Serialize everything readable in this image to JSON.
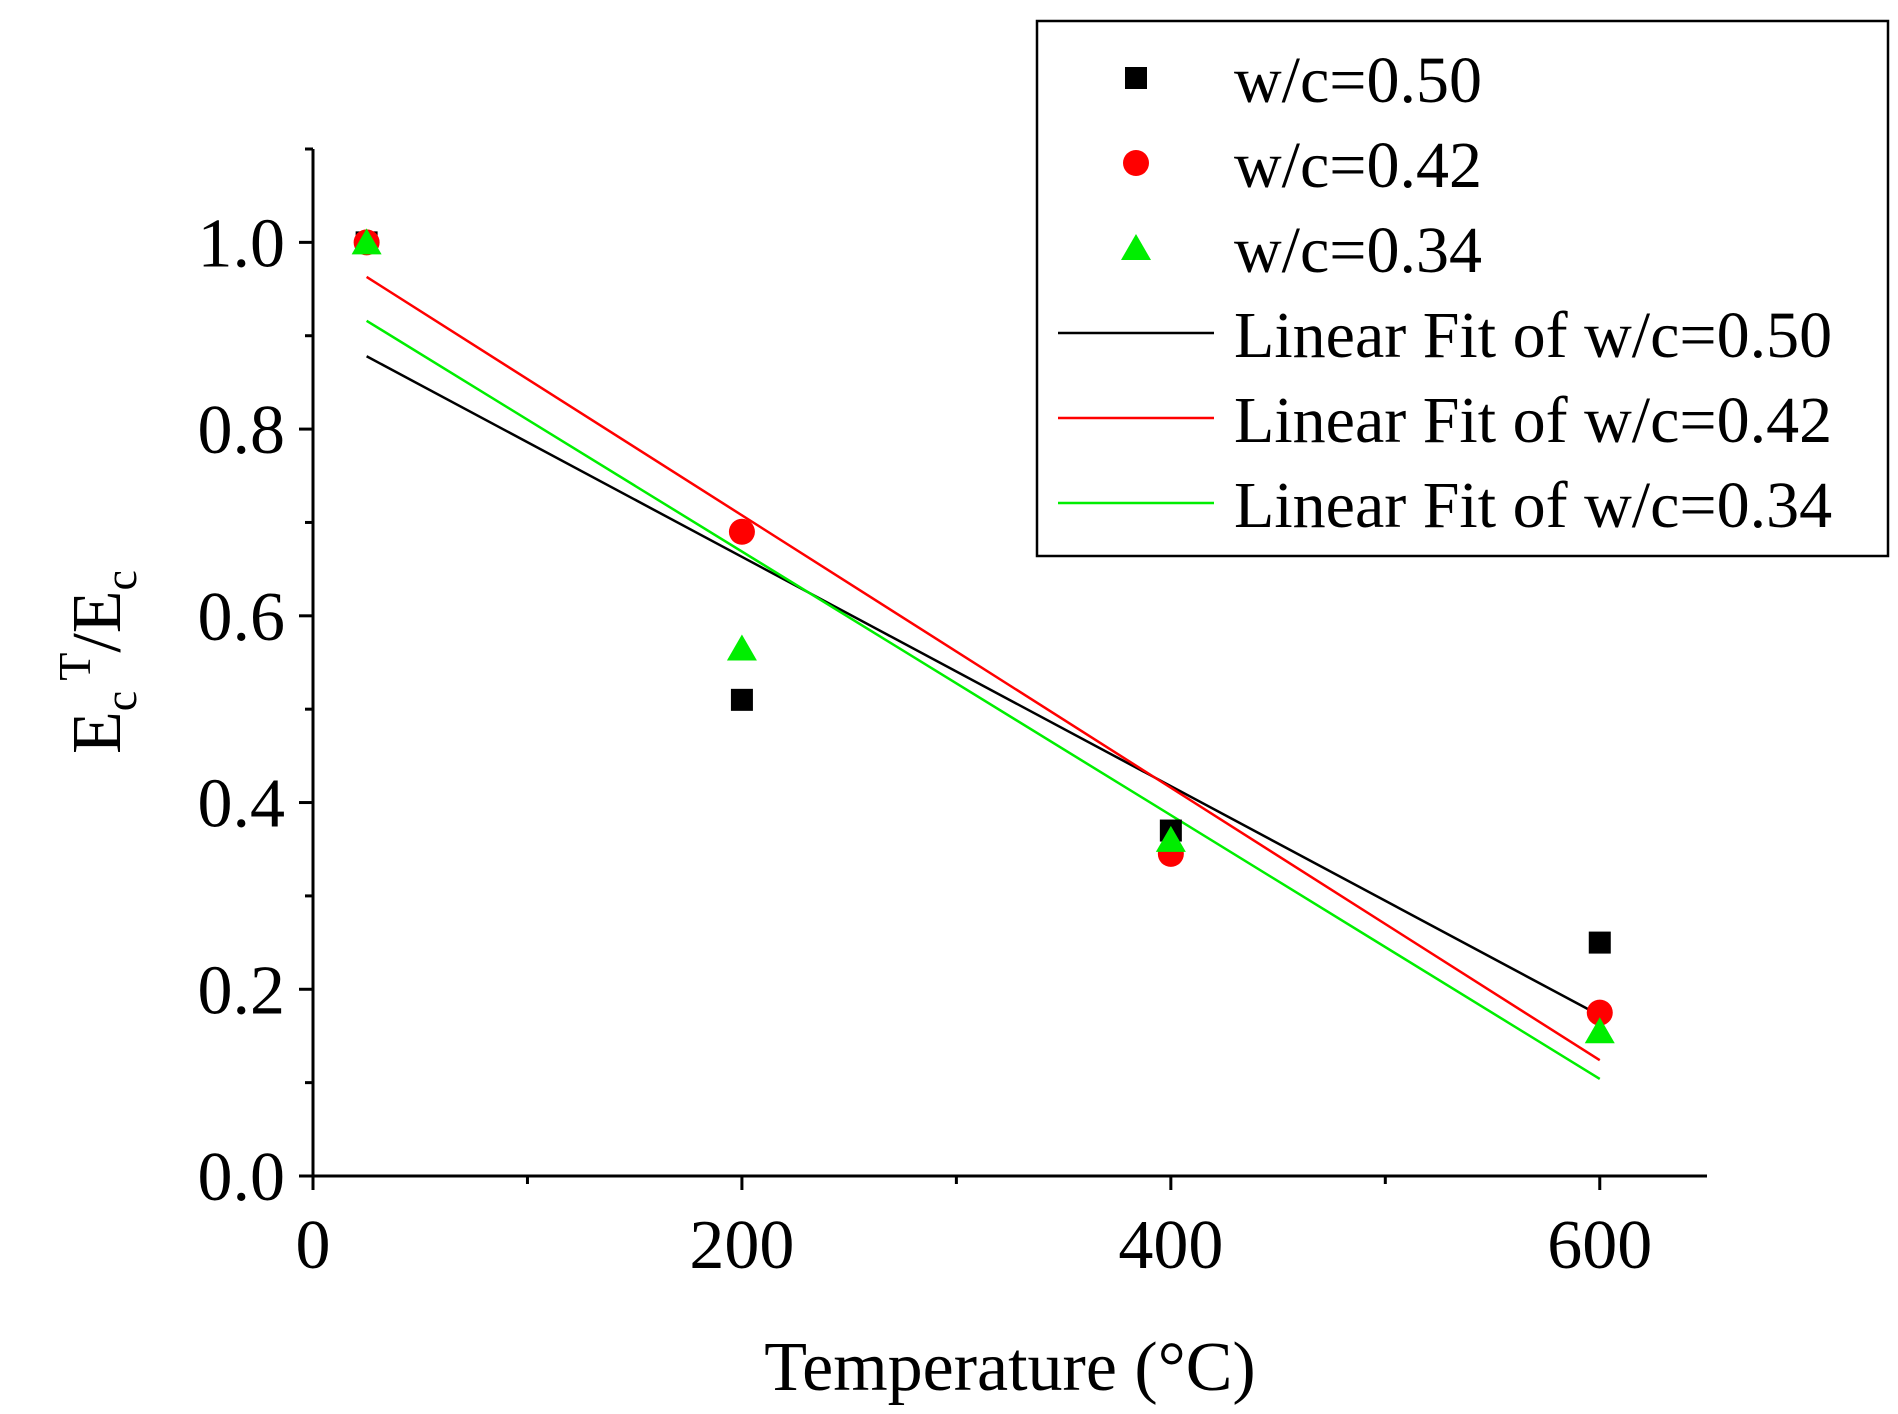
{
  "chart_data": {
    "type": "scatter",
    "xlabel": "Temperature (°C)",
    "ylabel": {
      "base": "E",
      "sub1": "c",
      "sup": "T",
      "slash": "/E",
      "sub2": "c"
    },
    "xlim": [
      0,
      650
    ],
    "ylim": [
      0,
      1.1
    ],
    "xticks": [
      0,
      200,
      400,
      600
    ],
    "xtick_labels": [
      "0",
      "200",
      "400",
      "600"
    ],
    "xminor": [
      100,
      300,
      500
    ],
    "yticks": [
      0,
      0.2,
      0.4,
      0.6,
      0.8,
      1.0
    ],
    "ytick_labels": [
      "0.0",
      "0.2",
      "0.4",
      "0.6",
      "0.8",
      "1.0"
    ],
    "yminor": [
      0.1,
      0.3,
      0.5,
      0.7,
      0.9,
      1.1
    ],
    "legend_position": "top-right",
    "series": [
      {
        "name": "w/c=0.50",
        "marker": "square",
        "color": "#000000",
        "x": [
          25,
          200,
          400,
          600
        ],
        "y": [
          1.0,
          0.51,
          0.37,
          0.25
        ]
      },
      {
        "name": "w/c=0.42",
        "marker": "circle",
        "color": "#ff0000",
        "x": [
          25,
          200,
          400,
          600
        ],
        "y": [
          1.0,
          0.69,
          0.345,
          0.175
        ]
      },
      {
        "name": "w/c=0.34",
        "marker": "triangle",
        "color": "#00ee00",
        "x": [
          25,
          200,
          400,
          600
        ],
        "y": [
          1.0,
          0.565,
          0.36,
          0.155
        ]
      }
    ],
    "fits": [
      {
        "name": "Linear Fit of w/c=0.50",
        "color": "#000000",
        "x": [
          25,
          600
        ],
        "y": [
          0.878,
          0.172
        ]
      },
      {
        "name": "Linear Fit of w/c=0.42",
        "color": "#ff0000",
        "x": [
          25,
          600
        ],
        "y": [
          0.963,
          0.124
        ]
      },
      {
        "name": "Linear Fit of w/c=0.34",
        "color": "#00ee00",
        "x": [
          25,
          600
        ],
        "y": [
          0.916,
          0.104
        ]
      }
    ]
  }
}
